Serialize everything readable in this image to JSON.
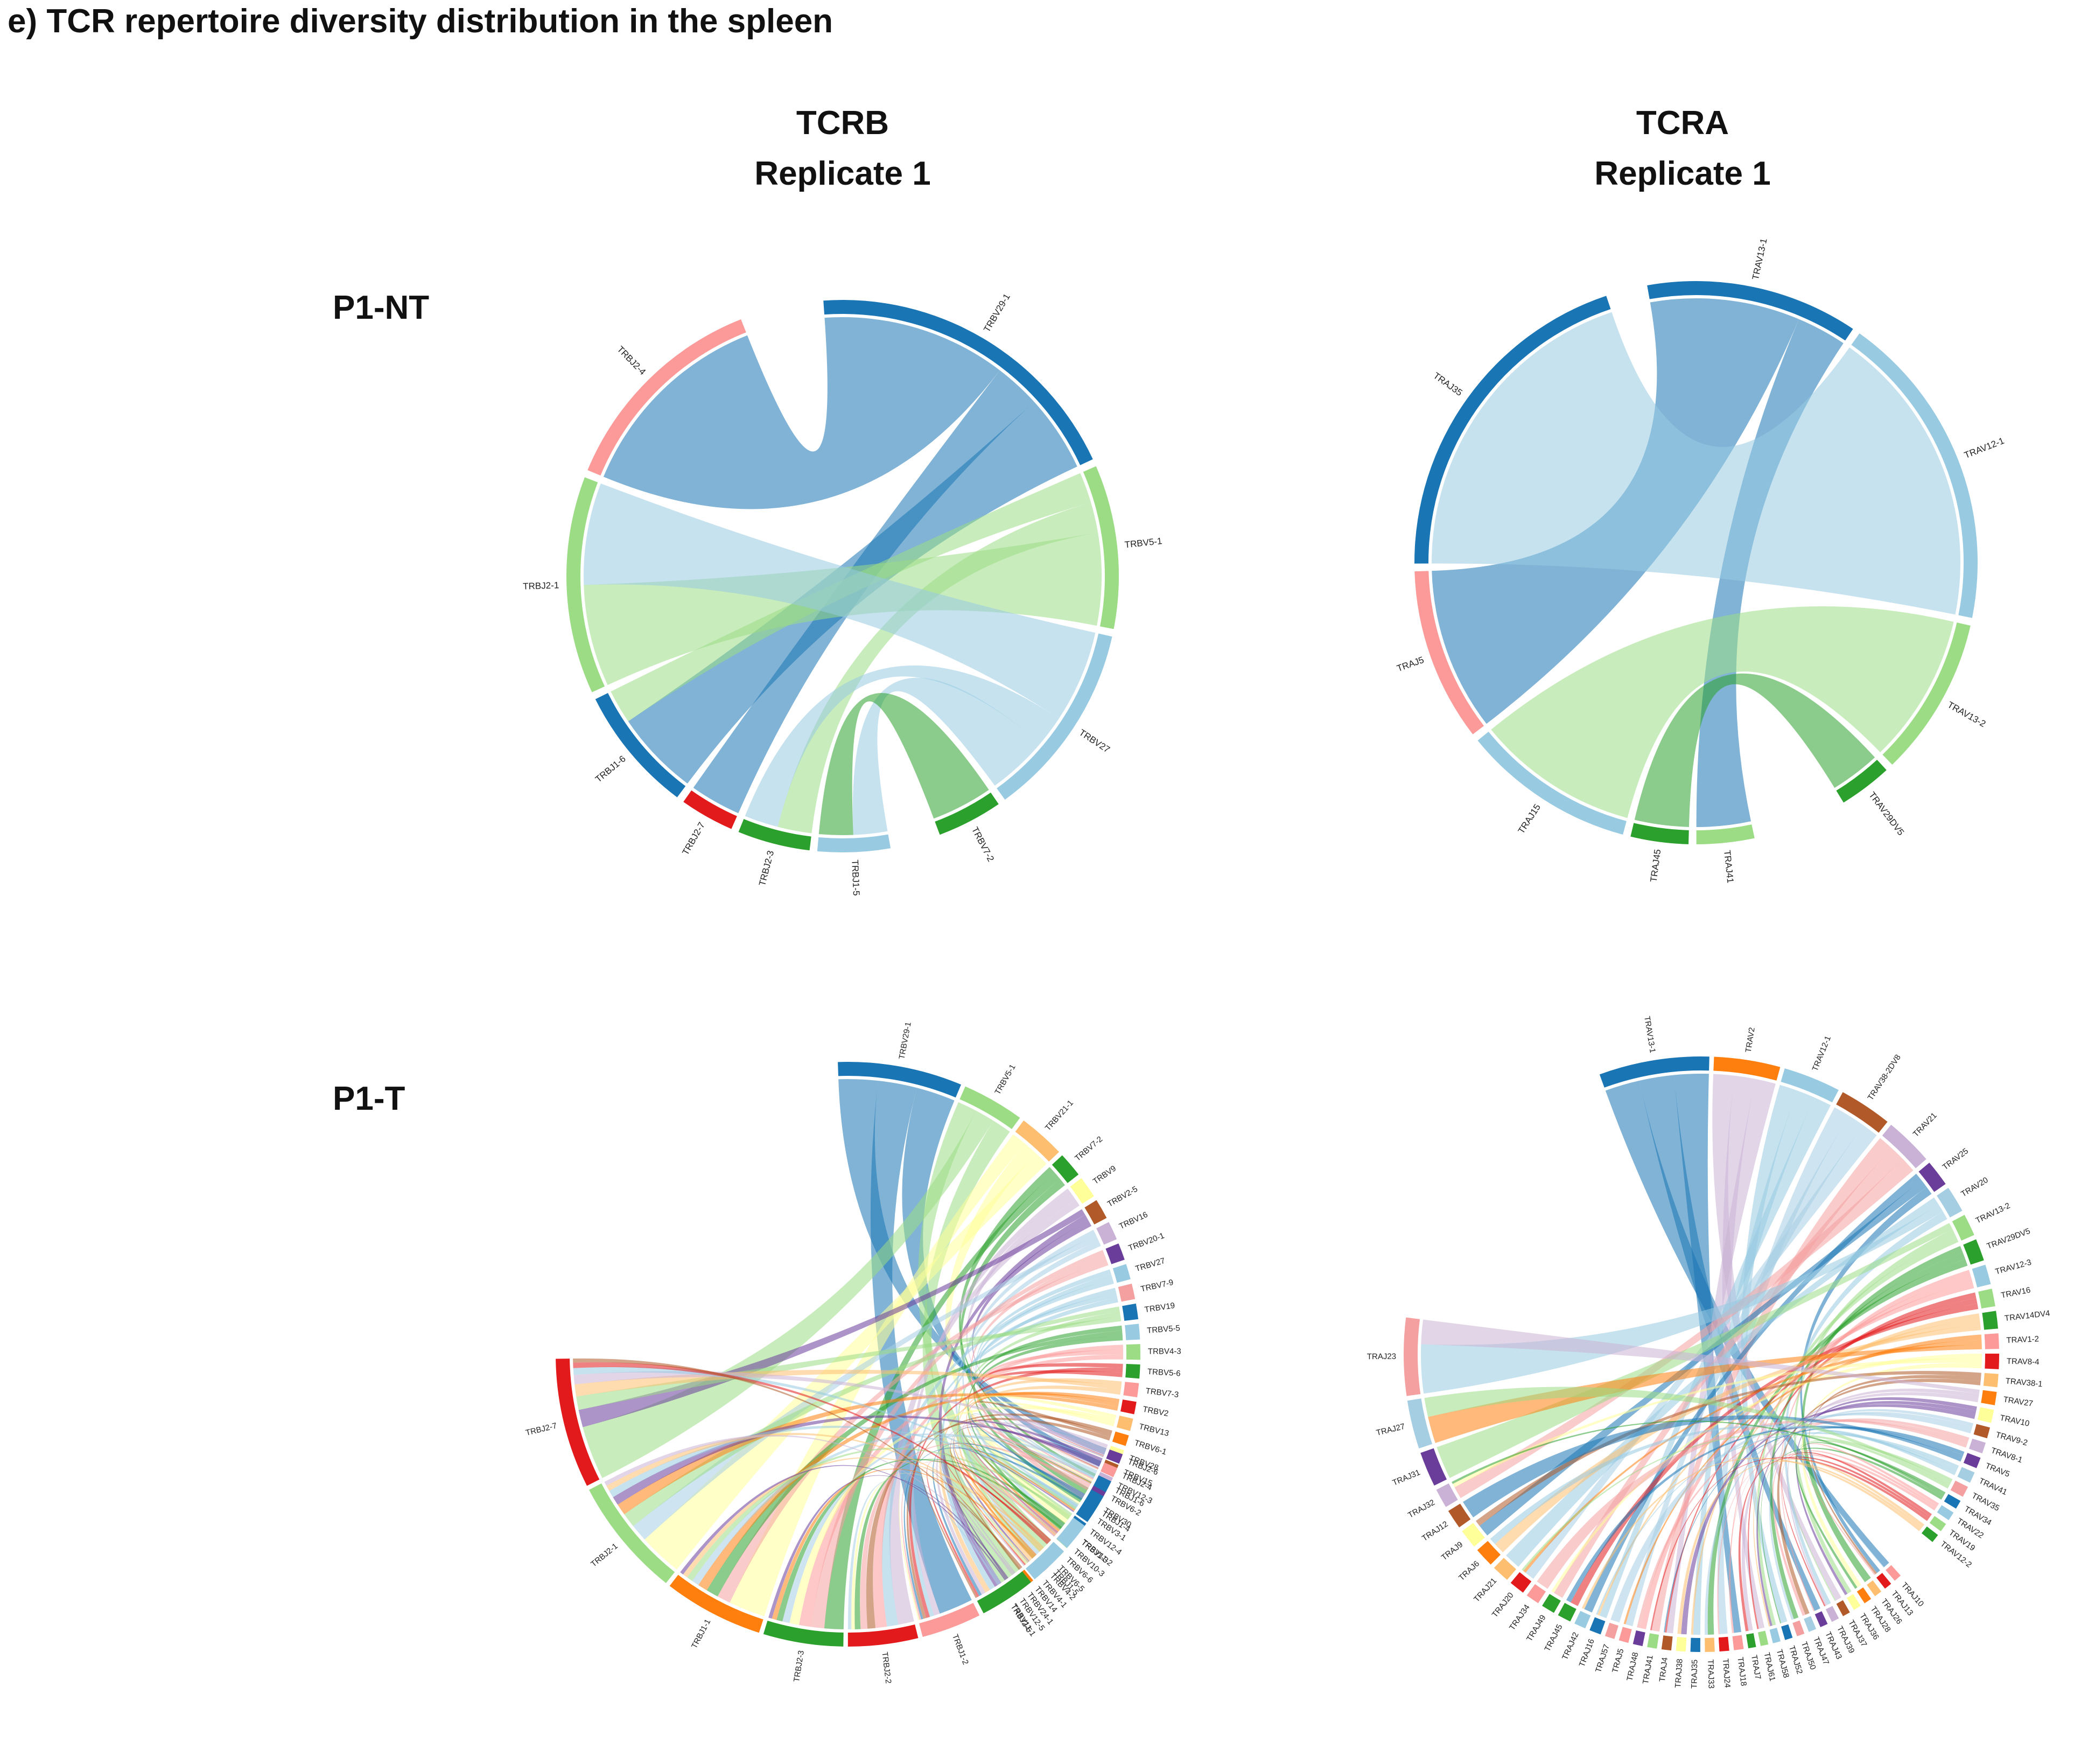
{
  "title": "e) TCR repertoire diversity distribution in the spleen",
  "columns": [
    {
      "line1": "TCRB",
      "line2": "Replicate 1"
    },
    {
      "line1": "TCRA",
      "line2": "Replicate 1"
    }
  ],
  "rows": [
    "P1-NT",
    "P1-T"
  ],
  "colors": {
    "TRBV29-1": "#1a75b5",
    "TRBV5-1": "#9bdc85",
    "TRBV27": "#98cbe2",
    "TRBV7-2": "#2ca02c",
    "TRBJ2-4": "#fb9a99",
    "TRBJ2-1": "#9bdc85",
    "TRBJ1-6": "#1a75b5",
    "TRBJ2-7": "#e31a1c",
    "TRBJ2-3": "#2ca02c",
    "TRBJ1-5": "#98cbe2",
    "TRAV13-1": "#1a75b5",
    "TRAV12-1": "#98cbe2",
    "TRAV13-2": "#9bdc85",
    "TRAV29DV5": "#2ca02c",
    "TRAJ41": "#9bdc85",
    "TRAJ45": "#2ca02c",
    "TRAJ15": "#98cbe2",
    "TRAJ5": "#fb9a99",
    "TRAJ35": "#1a75b5"
  },
  "chart_data": [
    {
      "type": "chord",
      "panel": "TCRB Replicate 1 / P1-NT",
      "title": "TCRB Replicate 1",
      "row": "P1-NT",
      "v_genes": [
        {
          "name": "TRBV29-1",
          "size": 10
        },
        {
          "name": "TRBV5-1",
          "size": 5
        },
        {
          "name": "TRBV27",
          "size": 6
        },
        {
          "name": "TRBV7-2",
          "size": 2
        }
      ],
      "j_genes": [
        {
          "name": "TRBJ1-5",
          "size": 2
        },
        {
          "name": "TRBJ2-3",
          "size": 2
        },
        {
          "name": "TRBJ2-7",
          "size": 1.5
        },
        {
          "name": "TRBJ1-6",
          "size": 3.5
        },
        {
          "name": "TRBJ2-1",
          "size": 6
        },
        {
          "name": "TRBJ2-4",
          "size": 6
        }
      ],
      "links": [
        {
          "v": "TRBV29-1",
          "j": "TRBJ2-4",
          "w": 6
        },
        {
          "v": "TRBV29-1",
          "j": "TRBJ2-7",
          "w": 1.5
        },
        {
          "v": "TRBV29-1",
          "j": "TRBJ1-6",
          "w": 2.5
        },
        {
          "v": "TRBV5-1",
          "j": "TRBJ1-6",
          "w": 1
        },
        {
          "v": "TRBV5-1",
          "j": "TRBJ2-3",
          "w": 1
        },
        {
          "v": "TRBV5-1",
          "j": "TRBJ2-1",
          "w": 3
        },
        {
          "v": "TRBV27",
          "j": "TRBJ2-1",
          "w": 3
        },
        {
          "v": "TRBV27",
          "j": "TRBJ2-3",
          "w": 1
        },
        {
          "v": "TRBV27",
          "j": "TRBJ1-5",
          "w": 2
        },
        {
          "v": "TRBV7-2",
          "j": "TRBJ1-5",
          "w": 2
        }
      ]
    },
    {
      "type": "chord",
      "panel": "TCRA Replicate 1 / P1-NT",
      "title": "TCRA Replicate 1",
      "row": "P1-NT",
      "v_genes": [
        {
          "name": "TRAV13-1",
          "size": 4
        },
        {
          "name": "TRAV12-1",
          "size": 6
        },
        {
          "name": "TRAV13-2",
          "size": 3
        },
        {
          "name": "TRAV29DV5",
          "size": 1
        }
      ],
      "j_genes": [
        {
          "name": "TRAJ41",
          "size": 1
        },
        {
          "name": "TRAJ45",
          "size": 1
        },
        {
          "name": "TRAJ15",
          "size": 3
        },
        {
          "name": "TRAJ5",
          "size": 3
        },
        {
          "name": "TRAJ35",
          "size": 6
        }
      ],
      "links": [
        {
          "v": "TRAV13-1",
          "j": "TRAJ5",
          "w": 3
        },
        {
          "v": "TRAV13-1",
          "j": "TRAJ41",
          "w": 1
        },
        {
          "v": "TRAV12-1",
          "j": "TRAJ35",
          "w": 6
        },
        {
          "v": "TRAV13-2",
          "j": "TRAJ15",
          "w": 3
        },
        {
          "v": "TRAV29DV5",
          "j": "TRAJ45",
          "w": 1
        }
      ]
    },
    {
      "type": "chord",
      "panel": "TCRB Replicate 1 / P1-T",
      "row": "P1-T",
      "v_genes": [
        {
          "name": "TRBV29-1",
          "size": 8
        },
        {
          "name": "TRBV5-1",
          "size": 4
        },
        {
          "name": "TRBV21-1",
          "size": 3
        },
        {
          "name": "TRBV7-2",
          "size": 1.6
        },
        {
          "name": "TRBV9",
          "size": 1.4
        },
        {
          "name": "TRBV2-5",
          "size": 1.3
        },
        {
          "name": "TRBV16",
          "size": 1.2
        },
        {
          "name": "TRBV20-1",
          "size": 1.1
        },
        {
          "name": "TRBV27",
          "size": 1
        },
        {
          "name": "TRBV7-9",
          "size": 1
        },
        {
          "name": "TRBV19",
          "size": 1
        },
        {
          "name": "TRBV5-5",
          "size": 1
        },
        {
          "name": "TRBV4-3",
          "size": 1
        },
        {
          "name": "TRBV5-6",
          "size": 0.9
        },
        {
          "name": "TRBV7-3",
          "size": 0.9
        },
        {
          "name": "TRBV2",
          "size": 0.8
        },
        {
          "name": "TRBV13",
          "size": 0.8
        },
        {
          "name": "TRBV6-1",
          "size": 0.7
        },
        {
          "name": "TRBV28",
          "size": 0.7
        },
        {
          "name": "TRBV15",
          "size": 0.6
        },
        {
          "name": "TRBV12-3",
          "size": 0.6
        },
        {
          "name": "TRBV6-2",
          "size": 0.6
        },
        {
          "name": "TRBV30",
          "size": 0.5
        },
        {
          "name": "TRBV3-1",
          "size": 0.5
        },
        {
          "name": "TRBV12-4",
          "size": 0.5
        },
        {
          "name": "TRBV11-2",
          "size": 0.5
        },
        {
          "name": "TRBV10-3",
          "size": 0.4
        },
        {
          "name": "TRBV6-6",
          "size": 0.4
        },
        {
          "name": "TRBV6-5",
          "size": 0.4
        },
        {
          "name": "TRBV4-2",
          "size": 0.4
        },
        {
          "name": "TRBV4-1",
          "size": 0.3
        },
        {
          "name": "TRBV14",
          "size": 0.3
        },
        {
          "name": "TRBV24-1",
          "size": 0.3
        },
        {
          "name": "TRBV12-5",
          "size": 0.3
        },
        {
          "name": "TRBV11-1",
          "size": 0.3
        }
      ],
      "j_genes": [
        {
          "name": "TRBJ2-6",
          "size": 0.5
        },
        {
          "name": "TRBJ2-4",
          "size": 0.5
        },
        {
          "name": "TRBJ1-6",
          "size": 0.6
        },
        {
          "name": "TRBJ1-4",
          "size": 1.5
        },
        {
          "name": "TRBJ1-3",
          "size": 1.4
        },
        {
          "name": "TRBJ1-5",
          "size": 2
        },
        {
          "name": "TRBJ2-5",
          "size": 2.8
        },
        {
          "name": "TRBJ1-2",
          "size": 3
        },
        {
          "name": "TRBJ2-2",
          "size": 3.5
        },
        {
          "name": "TRBJ2-3",
          "size": 4
        },
        {
          "name": "TRBJ1-1",
          "size": 5
        },
        {
          "name": "TRBJ2-1",
          "size": 6
        },
        {
          "name": "TRBJ2-7",
          "size": 6.5
        }
      ]
    },
    {
      "type": "chord",
      "panel": "TCRA Replicate 1 / P1-T",
      "row": "P1-T",
      "v_genes": [
        {
          "name": "TRAV13-1",
          "size": 5
        },
        {
          "name": "TRAV2",
          "size": 3
        },
        {
          "name": "TRAV12-1",
          "size": 2.6
        },
        {
          "name": "TRAV38-2DV8",
          "size": 2.4
        },
        {
          "name": "TRAV21",
          "size": 2.2
        },
        {
          "name": "TRAV25",
          "size": 1.2
        },
        {
          "name": "TRAV20",
          "size": 1.2
        },
        {
          "name": "TRAV13-2",
          "size": 1
        },
        {
          "name": "TRAV29DV5",
          "size": 1
        },
        {
          "name": "TRAV12-3",
          "size": 0.9
        },
        {
          "name": "TRAV16",
          "size": 0.8
        },
        {
          "name": "TRAV14DV4",
          "size": 0.8
        },
        {
          "name": "TRAV1-2",
          "size": 0.7
        },
        {
          "name": "TRAV8-4",
          "size": 0.7
        },
        {
          "name": "TRAV38-1",
          "size": 0.6
        },
        {
          "name": "TRAV27",
          "size": 0.6
        },
        {
          "name": "TRAV10",
          "size": 0.6
        },
        {
          "name": "TRAV9-2",
          "size": 0.5
        },
        {
          "name": "TRAV8-1",
          "size": 0.5
        },
        {
          "name": "TRAV5",
          "size": 0.5
        },
        {
          "name": "TRAV41",
          "size": 0.5
        },
        {
          "name": "TRAV35",
          "size": 0.5
        },
        {
          "name": "TRAV34",
          "size": 0.4
        },
        {
          "name": "TRAV22",
          "size": 0.4
        },
        {
          "name": "TRAV19",
          "size": 0.4
        },
        {
          "name": "TRAV12-2",
          "size": 0.4
        }
      ],
      "j_genes": [
        {
          "name": "TRAJ10",
          "size": 0.4
        },
        {
          "name": "TRAJ13",
          "size": 0.4
        },
        {
          "name": "TRAJ26",
          "size": 0.4
        },
        {
          "name": "TRAJ28",
          "size": 0.4
        },
        {
          "name": "TRAJ36",
          "size": 0.4
        },
        {
          "name": "TRAJ37",
          "size": 0.4
        },
        {
          "name": "TRAJ39",
          "size": 0.4
        },
        {
          "name": "TRAJ43",
          "size": 0.4
        },
        {
          "name": "TRAJ47",
          "size": 0.4
        },
        {
          "name": "TRAJ50",
          "size": 0.4
        },
        {
          "name": "TRAJ52",
          "size": 0.4
        },
        {
          "name": "TRAJ58",
          "size": 0.4
        },
        {
          "name": "TRAJ61",
          "size": 0.4
        },
        {
          "name": "TRAJ7",
          "size": 0.4
        },
        {
          "name": "TRAJ18",
          "size": 0.5
        },
        {
          "name": "TRAJ24",
          "size": 0.5
        },
        {
          "name": "TRAJ33",
          "size": 0.5
        },
        {
          "name": "TRAJ35",
          "size": 0.5
        },
        {
          "name": "TRAJ38",
          "size": 0.5
        },
        {
          "name": "TRAJ4",
          "size": 0.5
        },
        {
          "name": "TRAJ41",
          "size": 0.5
        },
        {
          "name": "TRAJ48",
          "size": 0.5
        },
        {
          "name": "TRAJ5",
          "size": 0.5
        },
        {
          "name": "TRAJ57",
          "size": 0.5
        },
        {
          "name": "TRAJ16",
          "size": 0.6
        },
        {
          "name": "TRAJ42",
          "size": 0.6
        },
        {
          "name": "TRAJ45",
          "size": 0.7
        },
        {
          "name": "TRAJ49",
          "size": 0.7
        },
        {
          "name": "TRAJ34",
          "size": 0.7
        },
        {
          "name": "TRAJ20",
          "size": 0.8
        },
        {
          "name": "TRAJ21",
          "size": 0.9
        },
        {
          "name": "TRAJ6",
          "size": 1
        },
        {
          "name": "TRAJ9",
          "size": 1
        },
        {
          "name": "TRAJ12",
          "size": 1
        },
        {
          "name": "TRAJ32",
          "size": 1
        },
        {
          "name": "TRAJ31",
          "size": 1.8
        },
        {
          "name": "TRAJ27",
          "size": 2.5
        },
        {
          "name": "TRAJ23",
          "size": 4
        }
      ]
    }
  ]
}
